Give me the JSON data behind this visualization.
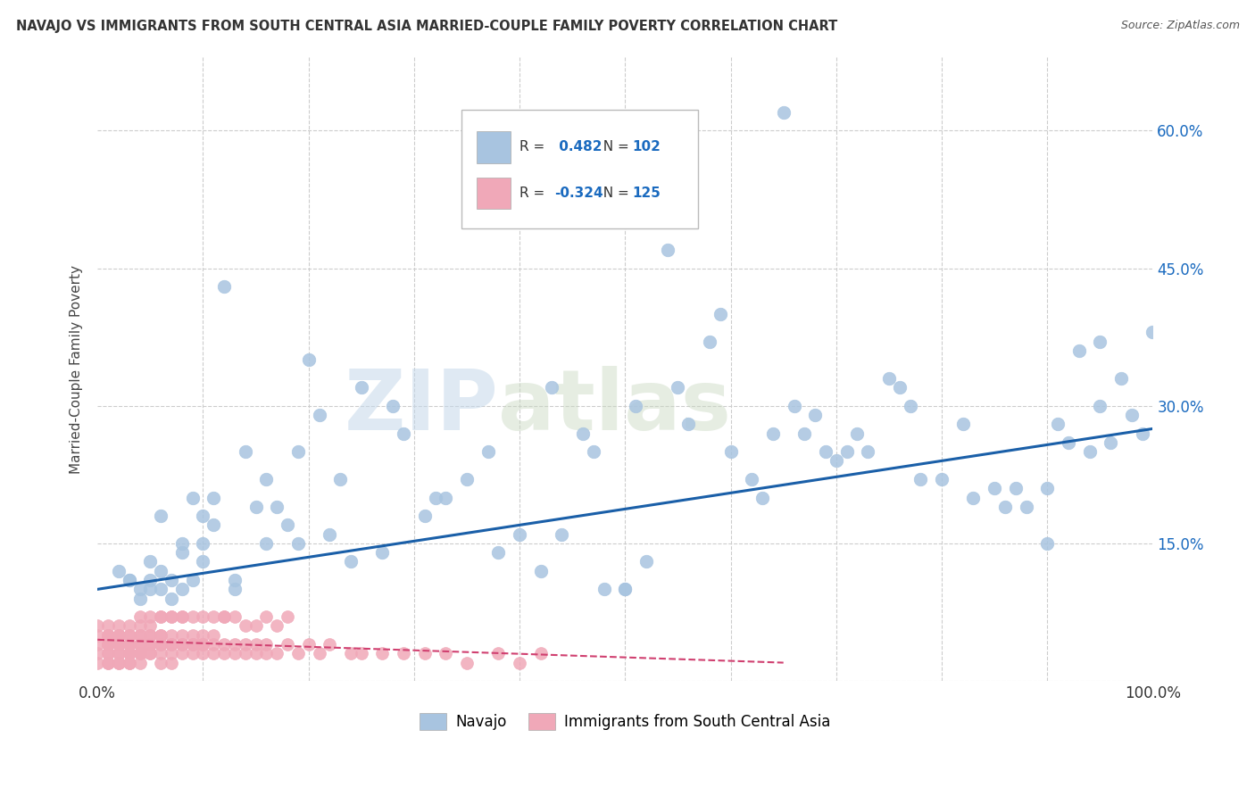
{
  "title": "NAVAJO VS IMMIGRANTS FROM SOUTH CENTRAL ASIA MARRIED-COUPLE FAMILY POVERTY CORRELATION CHART",
  "source": "Source: ZipAtlas.com",
  "ylabel": "Married-Couple Family Poverty",
  "watermark": "ZIPatlas",
  "legend_labels": [
    "Navajo",
    "Immigrants from South Central Asia"
  ],
  "navajo_R": 0.482,
  "navajo_N": 102,
  "immigrants_R": -0.324,
  "immigrants_N": 125,
  "navajo_color": "#a8c4e0",
  "navajo_line_color": "#1a5fa8",
  "immigrants_color": "#f0a8b8",
  "immigrants_line_color": "#d04070",
  "background_color": "#ffffff",
  "grid_color": "#cccccc",
  "xlim": [
    0,
    1.0
  ],
  "ylim": [
    0,
    0.68
  ],
  "ytick_positions": [
    0.15,
    0.3,
    0.45,
    0.6
  ],
  "ytick_labels": [
    "15.0%",
    "30.0%",
    "45.0%",
    "60.0%"
  ],
  "navajo_x": [
    0.02,
    0.03,
    0.04,
    0.04,
    0.05,
    0.05,
    0.05,
    0.06,
    0.06,
    0.07,
    0.07,
    0.08,
    0.08,
    0.09,
    0.09,
    0.1,
    0.1,
    0.11,
    0.11,
    0.12,
    0.13,
    0.14,
    0.15,
    0.16,
    0.17,
    0.18,
    0.19,
    0.2,
    0.21,
    0.22,
    0.23,
    0.25,
    0.27,
    0.29,
    0.31,
    0.33,
    0.35,
    0.38,
    0.4,
    0.42,
    0.44,
    0.46,
    0.48,
    0.5,
    0.5,
    0.52,
    0.54,
    0.56,
    0.58,
    0.6,
    0.62,
    0.63,
    0.65,
    0.67,
    0.68,
    0.7,
    0.72,
    0.73,
    0.75,
    0.77,
    0.78,
    0.8,
    0.82,
    0.83,
    0.85,
    0.87,
    0.88,
    0.9,
    0.91,
    0.92,
    0.93,
    0.94,
    0.95,
    0.96,
    0.97,
    0.98,
    0.99,
    1.0,
    0.03,
    0.06,
    0.08,
    0.1,
    0.13,
    0.16,
    0.19,
    0.24,
    0.28,
    0.32,
    0.37,
    0.43,
    0.47,
    0.51,
    0.55,
    0.59,
    0.64,
    0.66,
    0.69,
    0.71,
    0.76,
    0.86,
    0.9,
    0.95
  ],
  "navajo_y": [
    0.12,
    0.11,
    0.09,
    0.1,
    0.11,
    0.13,
    0.1,
    0.1,
    0.12,
    0.09,
    0.11,
    0.14,
    0.1,
    0.11,
    0.2,
    0.18,
    0.15,
    0.2,
    0.17,
    0.43,
    0.1,
    0.25,
    0.19,
    0.22,
    0.19,
    0.17,
    0.15,
    0.35,
    0.29,
    0.16,
    0.22,
    0.32,
    0.14,
    0.27,
    0.18,
    0.2,
    0.22,
    0.14,
    0.16,
    0.12,
    0.16,
    0.27,
    0.1,
    0.1,
    0.1,
    0.13,
    0.47,
    0.28,
    0.37,
    0.25,
    0.22,
    0.2,
    0.62,
    0.27,
    0.29,
    0.24,
    0.27,
    0.25,
    0.33,
    0.3,
    0.22,
    0.22,
    0.28,
    0.2,
    0.21,
    0.21,
    0.19,
    0.21,
    0.28,
    0.26,
    0.36,
    0.25,
    0.3,
    0.26,
    0.33,
    0.29,
    0.27,
    0.38,
    0.11,
    0.18,
    0.15,
    0.13,
    0.11,
    0.15,
    0.25,
    0.13,
    0.3,
    0.2,
    0.25,
    0.32,
    0.25,
    0.3,
    0.32,
    0.4,
    0.27,
    0.3,
    0.25,
    0.25,
    0.32,
    0.19,
    0.15,
    0.37
  ],
  "immigrants_x": [
    0.0,
    0.0,
    0.0,
    0.0,
    0.0,
    0.01,
    0.01,
    0.01,
    0.01,
    0.01,
    0.01,
    0.01,
    0.01,
    0.01,
    0.01,
    0.01,
    0.02,
    0.02,
    0.02,
    0.02,
    0.02,
    0.02,
    0.02,
    0.02,
    0.02,
    0.02,
    0.02,
    0.03,
    0.03,
    0.03,
    0.03,
    0.03,
    0.03,
    0.03,
    0.03,
    0.03,
    0.03,
    0.03,
    0.04,
    0.04,
    0.04,
    0.04,
    0.04,
    0.04,
    0.04,
    0.04,
    0.04,
    0.05,
    0.05,
    0.05,
    0.05,
    0.05,
    0.05,
    0.05,
    0.06,
    0.06,
    0.06,
    0.06,
    0.06,
    0.06,
    0.07,
    0.07,
    0.07,
    0.07,
    0.07,
    0.08,
    0.08,
    0.08,
    0.08,
    0.09,
    0.09,
    0.09,
    0.09,
    0.1,
    0.1,
    0.1,
    0.1,
    0.11,
    0.11,
    0.11,
    0.12,
    0.12,
    0.13,
    0.13,
    0.14,
    0.14,
    0.15,
    0.15,
    0.16,
    0.16,
    0.17,
    0.18,
    0.19,
    0.2,
    0.21,
    0.22,
    0.24,
    0.25,
    0.27,
    0.29,
    0.31,
    0.33,
    0.35,
    0.38,
    0.4,
    0.42,
    0.12,
    0.13,
    0.14,
    0.15,
    0.16,
    0.17,
    0.18,
    0.06,
    0.07,
    0.08,
    0.09,
    0.1,
    0.11,
    0.12,
    0.04,
    0.05,
    0.06,
    0.07,
    0.08
  ],
  "immigrants_y": [
    0.02,
    0.03,
    0.04,
    0.05,
    0.06,
    0.02,
    0.03,
    0.04,
    0.05,
    0.06,
    0.03,
    0.04,
    0.05,
    0.02,
    0.04,
    0.05,
    0.02,
    0.03,
    0.04,
    0.05,
    0.06,
    0.03,
    0.04,
    0.05,
    0.02,
    0.04,
    0.05,
    0.02,
    0.03,
    0.04,
    0.05,
    0.06,
    0.03,
    0.04,
    0.05,
    0.03,
    0.02,
    0.04,
    0.03,
    0.04,
    0.05,
    0.06,
    0.03,
    0.04,
    0.05,
    0.03,
    0.02,
    0.04,
    0.05,
    0.03,
    0.06,
    0.04,
    0.05,
    0.03,
    0.04,
    0.05,
    0.03,
    0.04,
    0.05,
    0.02,
    0.04,
    0.05,
    0.03,
    0.04,
    0.02,
    0.04,
    0.05,
    0.03,
    0.04,
    0.04,
    0.05,
    0.03,
    0.04,
    0.04,
    0.05,
    0.03,
    0.04,
    0.04,
    0.05,
    0.03,
    0.03,
    0.04,
    0.04,
    0.03,
    0.04,
    0.03,
    0.04,
    0.03,
    0.04,
    0.03,
    0.03,
    0.04,
    0.03,
    0.04,
    0.03,
    0.04,
    0.03,
    0.03,
    0.03,
    0.03,
    0.03,
    0.03,
    0.02,
    0.03,
    0.02,
    0.03,
    0.07,
    0.07,
    0.06,
    0.06,
    0.07,
    0.06,
    0.07,
    0.07,
    0.07,
    0.07,
    0.07,
    0.07,
    0.07,
    0.07,
    0.07,
    0.07,
    0.07,
    0.07,
    0.07
  ],
  "nav_trend_x0": 0.0,
  "nav_trend_y0": 0.1,
  "nav_trend_x1": 1.0,
  "nav_trend_y1": 0.275,
  "imm_trend_x0": 0.0,
  "imm_trend_y0": 0.045,
  "imm_trend_x1": 0.65,
  "imm_trend_y1": 0.02
}
